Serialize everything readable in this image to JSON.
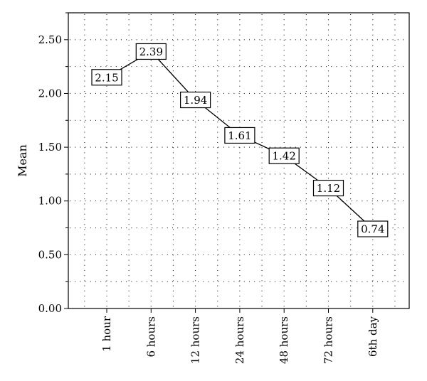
{
  "chart_data": {
    "type": "line",
    "ylabel": "Mean",
    "categories": [
      "1 hour",
      "6 hours",
      "12 hours",
      "24 hours",
      "48 hours",
      "72 hours",
      "6th day"
    ],
    "values": [
      2.15,
      2.39,
      1.94,
      1.61,
      1.42,
      1.12,
      0.74
    ],
    "ylim": [
      0,
      2.75
    ],
    "y_ticks": [
      "0.00",
      "0.50",
      "1.00",
      "1.50",
      "2.00",
      "2.50"
    ],
    "grid": true,
    "data_labels": true
  }
}
